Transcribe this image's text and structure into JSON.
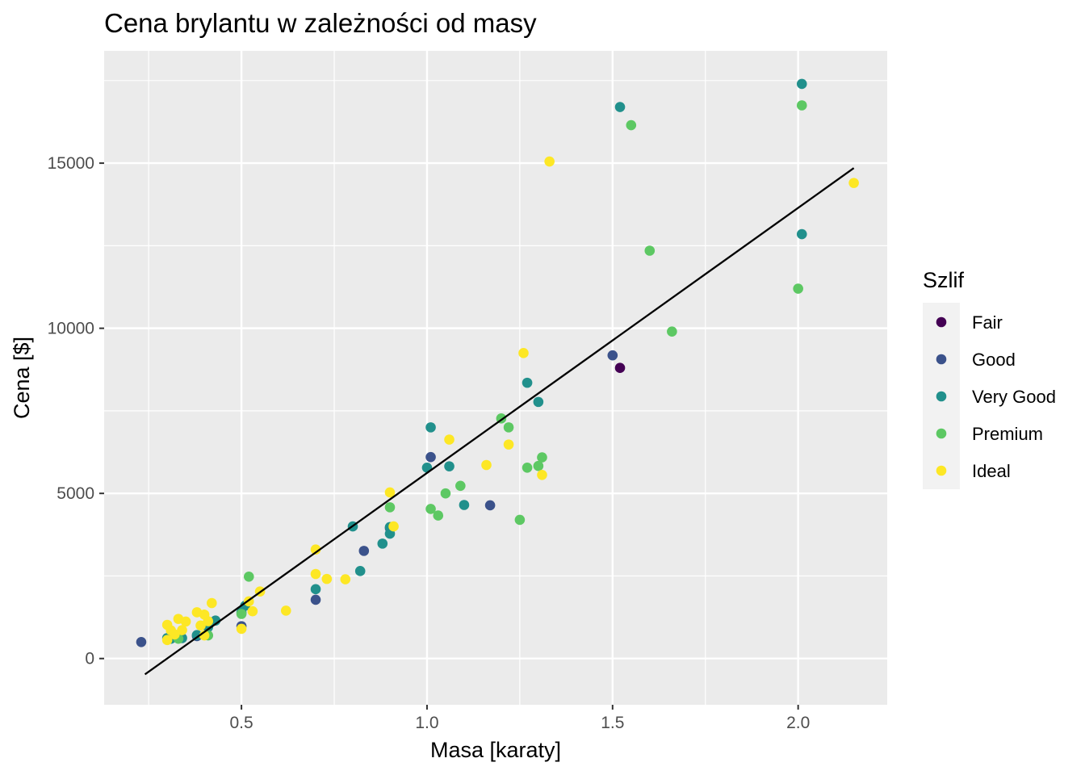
{
  "chart_data": {
    "type": "scatter",
    "title": "Cena brylantu w zależności od masy",
    "xlabel": "Masa [karaty]",
    "ylabel": "Cena [$]",
    "xlim": [
      0.13,
      2.24
    ],
    "ylim": [
      -1400,
      18400
    ],
    "x_ticks": [
      0.5,
      1.0,
      1.5,
      2.0
    ],
    "x_tick_labels": [
      "0.5",
      "1.0",
      "1.5",
      "2.0"
    ],
    "y_ticks": [
      0,
      5000,
      10000,
      15000
    ],
    "y_tick_labels": [
      "0",
      "5000",
      "10000",
      "15000"
    ],
    "grid": true,
    "legend": {
      "title": "Szlif",
      "position": "right"
    },
    "series": [
      {
        "name": "Fair",
        "color": "#440154",
        "points": [
          [
            1.52,
            8800
          ]
        ]
      },
      {
        "name": "Good",
        "color": "#3b528b",
        "points": [
          [
            0.23,
            500
          ],
          [
            0.38,
            680
          ],
          [
            0.5,
            980
          ],
          [
            0.7,
            1780
          ],
          [
            0.83,
            3260
          ],
          [
            0.9,
            3950
          ],
          [
            1.01,
            6100
          ],
          [
            1.17,
            4640
          ],
          [
            1.5,
            9180
          ]
        ]
      },
      {
        "name": "Very Good",
        "color": "#21908c",
        "points": [
          [
            0.3,
            620
          ],
          [
            0.31,
            600
          ],
          [
            0.32,
            660
          ],
          [
            0.34,
            620
          ],
          [
            0.38,
            710
          ],
          [
            0.41,
            950
          ],
          [
            0.43,
            1150
          ],
          [
            0.5,
            1400
          ],
          [
            0.51,
            1600
          ],
          [
            0.7,
            2100
          ],
          [
            0.8,
            4000
          ],
          [
            0.82,
            2650
          ],
          [
            0.88,
            3480
          ],
          [
            0.9,
            3780
          ],
          [
            0.9,
            3980
          ],
          [
            1.0,
            5780
          ],
          [
            1.01,
            7000
          ],
          [
            1.06,
            5820
          ],
          [
            1.1,
            4650
          ],
          [
            1.27,
            8350
          ],
          [
            1.3,
            7770
          ],
          [
            1.52,
            16700
          ],
          [
            2.01,
            12850
          ],
          [
            2.01,
            17400
          ]
        ]
      },
      {
        "name": "Premium",
        "color": "#5dc863",
        "points": [
          [
            0.33,
            600
          ],
          [
            0.41,
            700
          ],
          [
            0.5,
            1350
          ],
          [
            0.52,
            2480
          ],
          [
            0.9,
            4580
          ],
          [
            1.01,
            4530
          ],
          [
            1.03,
            4330
          ],
          [
            1.05,
            5000
          ],
          [
            1.09,
            5230
          ],
          [
            1.2,
            7270
          ],
          [
            1.22,
            7000
          ],
          [
            1.25,
            4200
          ],
          [
            1.27,
            5780
          ],
          [
            1.3,
            5830
          ],
          [
            1.31,
            6090
          ],
          [
            1.55,
            16150
          ],
          [
            1.6,
            12350
          ],
          [
            1.66,
            9900
          ],
          [
            2.0,
            11200
          ],
          [
            2.01,
            16750
          ]
        ]
      },
      {
        "name": "Ideal",
        "color": "#fde725",
        "points": [
          [
            0.3,
            560
          ],
          [
            0.3,
            1020
          ],
          [
            0.31,
            850
          ],
          [
            0.32,
            730
          ],
          [
            0.33,
            1200
          ],
          [
            0.34,
            860
          ],
          [
            0.35,
            1120
          ],
          [
            0.38,
            1400
          ],
          [
            0.39,
            1000
          ],
          [
            0.4,
            1330
          ],
          [
            0.4,
            700
          ],
          [
            0.41,
            1130
          ],
          [
            0.42,
            1680
          ],
          [
            0.5,
            900
          ],
          [
            0.52,
            1730
          ],
          [
            0.53,
            1430
          ],
          [
            0.55,
            2030
          ],
          [
            0.62,
            1450
          ],
          [
            0.7,
            3300
          ],
          [
            0.7,
            2560
          ],
          [
            0.73,
            2410
          ],
          [
            0.78,
            2400
          ],
          [
            0.9,
            5030
          ],
          [
            0.91,
            4000
          ],
          [
            1.06,
            6630
          ],
          [
            1.16,
            5860
          ],
          [
            1.22,
            6480
          ],
          [
            1.26,
            9250
          ],
          [
            1.31,
            5560
          ],
          [
            1.33,
            15050
          ],
          [
            2.15,
            14400
          ]
        ]
      }
    ],
    "trend_line": {
      "color": "#000000",
      "x": [
        0.24,
        2.15
      ],
      "y": [
        -480,
        14850
      ]
    }
  }
}
